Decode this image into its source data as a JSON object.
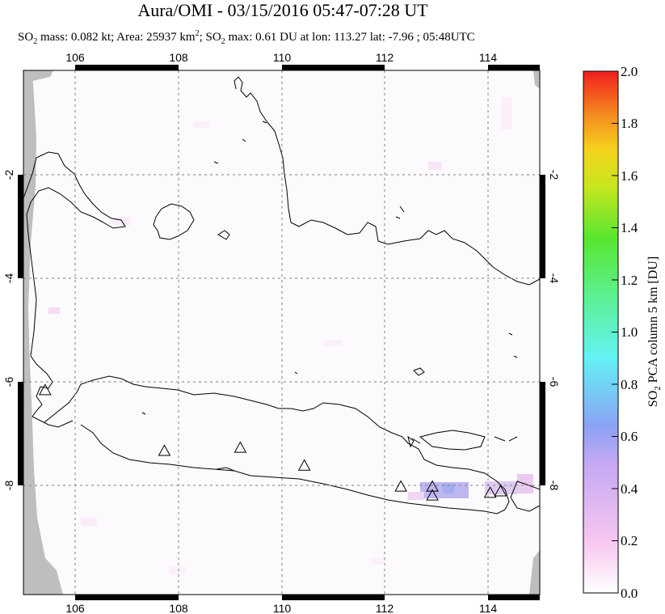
{
  "title": "Aura/OMI - 03/15/2016 05:47-07:28 UT",
  "subtitle": {
    "so2_prefix": "SO",
    "so2_sub": "2",
    "mass_text": " mass: 0.082 kt; Area: 25937 km",
    "area_sup": "2",
    "so2_max_prefix": "; SO",
    "so2_max_sub": "2",
    "max_text": " max: 0.61 DU at lon: 113.27 lat: -7.96 ; 05:48UTC"
  },
  "map": {
    "lon_range": [
      105,
      115
    ],
    "lat_range": [
      -10,
      0
    ],
    "lon_ticks": [
      "106",
      "108",
      "110",
      "112",
      "114"
    ],
    "lat_ticks_left": [
      "-2",
      "-4",
      "-6",
      "-8"
    ],
    "lat_ticks_right": [
      "-2",
      "-4",
      "-6",
      "-8"
    ],
    "volcanoes": [
      {
        "lon": 105.42,
        "lat": -6.1
      },
      {
        "lon": 107.73,
        "lat": -7.26
      },
      {
        "lon": 109.2,
        "lat": -7.2
      },
      {
        "lon": 110.44,
        "lat": -7.54
      },
      {
        "lon": 112.31,
        "lat": -7.94
      },
      {
        "lon": 112.92,
        "lat": -7.94
      },
      {
        "lon": 112.92,
        "lat": -8.11
      },
      {
        "lon": 114.04,
        "lat": -8.06
      },
      {
        "lon": 114.24,
        "lat": -8.03
      }
    ],
    "missing_data_color": "#bebebe",
    "grid": true
  },
  "colorbar": {
    "title": "SO2 PCA column 5 km [DU]",
    "title_prefix": "SO",
    "title_sub": "2",
    "title_rest": " PCA column 5 km [DU]",
    "ticks": [
      "0.0",
      "0.2",
      "0.4",
      "0.6",
      "0.8",
      "1.0",
      "1.2",
      "1.4",
      "1.6",
      "1.8",
      "2.0"
    ],
    "min": 0.0,
    "max": 2.0,
    "colors": [
      "#ffffff",
      "#f7c6f0",
      "#b9a8f2",
      "#8ba2f5",
      "#63f2f5",
      "#5cf08f",
      "#58e62e",
      "#c8e61e",
      "#f5d21e",
      "#f5871e",
      "#f01e1e"
    ]
  }
}
